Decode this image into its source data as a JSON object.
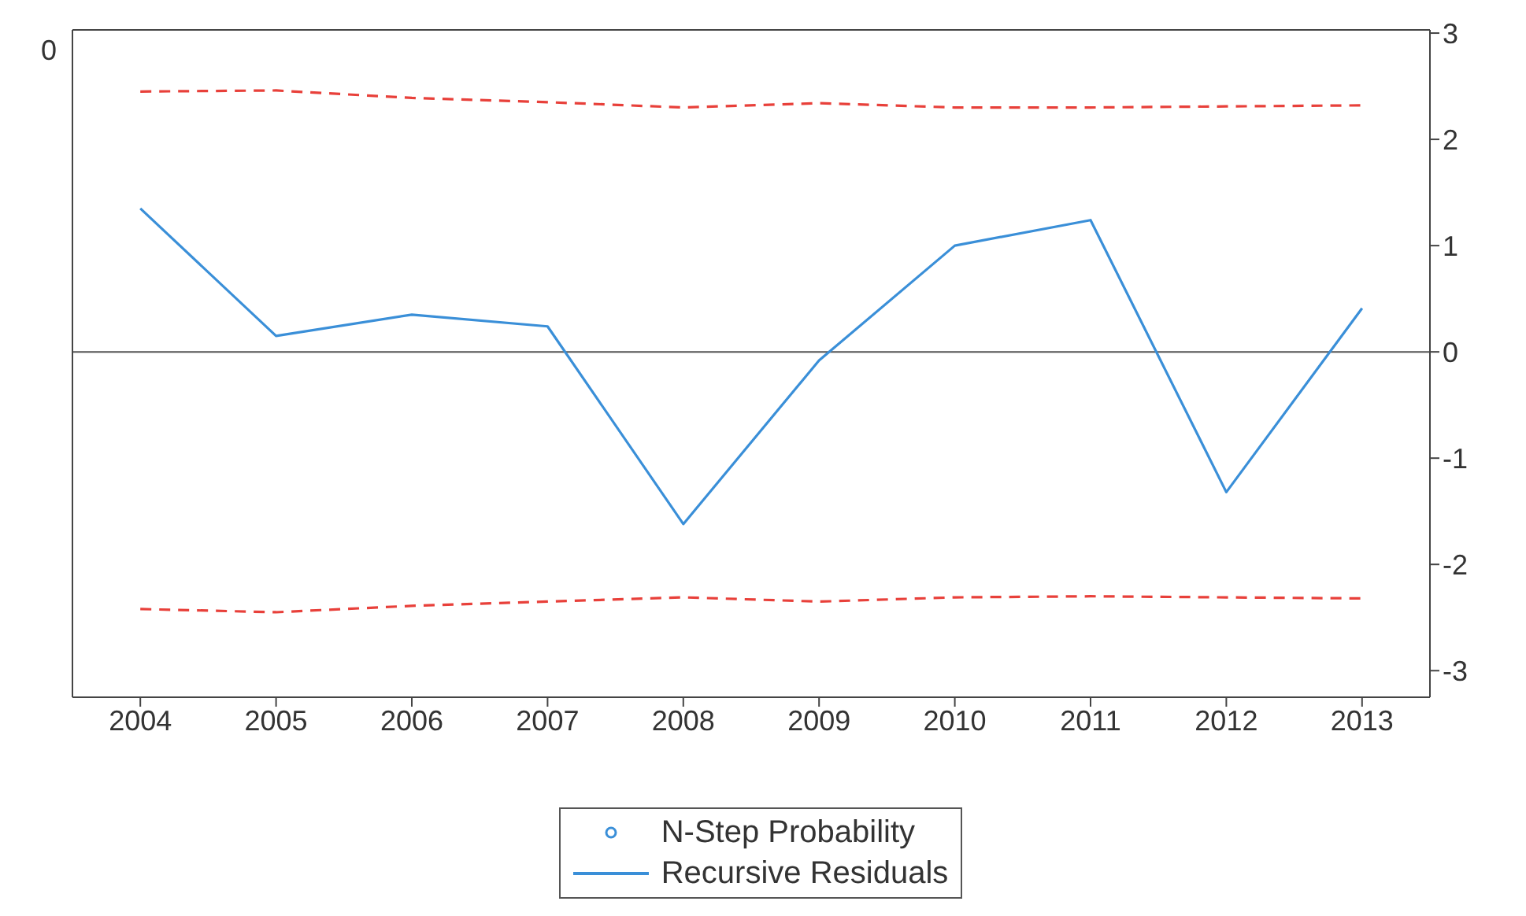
{
  "chart_data": {
    "type": "line",
    "categories": [
      "2004",
      "2005",
      "2006",
      "2007",
      "2008",
      "2009",
      "2010",
      "2011",
      "2012",
      "2013"
    ],
    "series": [
      {
        "name": "N-Step Probability",
        "type": "scatter",
        "marker": "circle",
        "color": "#3a8fd8",
        "axis": "y",
        "values": [
          null,
          null,
          null,
          null,
          null,
          null,
          null,
          null,
          null,
          null
        ]
      },
      {
        "name": "Recursive Residuals",
        "color": "#3a8fd8",
        "axis": "y2",
        "line_style": "solid",
        "values": [
          1.35,
          0.15,
          0.35,
          0.24,
          -1.62,
          -0.08,
          1.0,
          1.24,
          -1.32,
          0.41
        ]
      },
      {
        "color": "#e8403a",
        "axis": "y2",
        "line_style": "dashed",
        "values": [
          2.45,
          2.46,
          2.39,
          2.35,
          2.3,
          2.34,
          2.3,
          2.3,
          2.31,
          2.32
        ]
      },
      {
        "color": "#e8403a",
        "axis": "y2",
        "line_style": "dashed",
        "values": [
          -2.42,
          -2.45,
          -2.39,
          -2.35,
          -2.31,
          -2.35,
          -2.31,
          -2.3,
          -2.31,
          -2.32
        ]
      }
    ],
    "annotations": [
      "0"
    ],
    "y2lim": [
      -3.25,
      3.03
    ],
    "y2ticks": [
      -3,
      -2,
      -1,
      0,
      1,
      2,
      3
    ],
    "ref_lines": [
      {
        "axis": "y2",
        "value": 0,
        "color": "#555555"
      }
    ],
    "grid": false,
    "legend": "bottom"
  }
}
